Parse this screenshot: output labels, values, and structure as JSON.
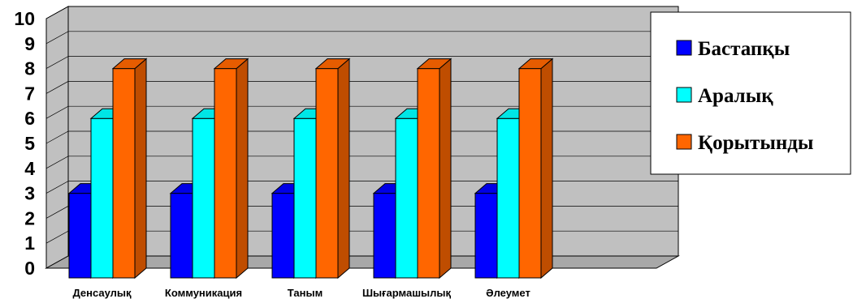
{
  "chart_data": {
    "type": "bar",
    "categories": [
      "Денсаулық",
      "Коммуникация",
      "Таным",
      "Шығармашылық",
      "Әлеумет"
    ],
    "series": [
      {
        "name": "Бастапқы",
        "values": [
          3,
          3,
          3,
          3,
          3
        ],
        "color": "#0000ff"
      },
      {
        "name": "Аралық",
        "values": [
          6,
          6,
          6,
          6,
          6
        ],
        "color": "#00ffff"
      },
      {
        "name": "Қорытынды",
        "values": [
          8,
          8,
          8,
          8,
          8
        ],
        "color": "#ff6600"
      }
    ],
    "yticks": [
      "0",
      "1",
      "2",
      "3",
      "4",
      "5",
      "6",
      "7",
      "8",
      "9",
      "10"
    ],
    "ylim": [
      0,
      10
    ],
    "grid": true,
    "legend_position": "right",
    "wall_color": "#c0c0c0",
    "three_d": true
  }
}
